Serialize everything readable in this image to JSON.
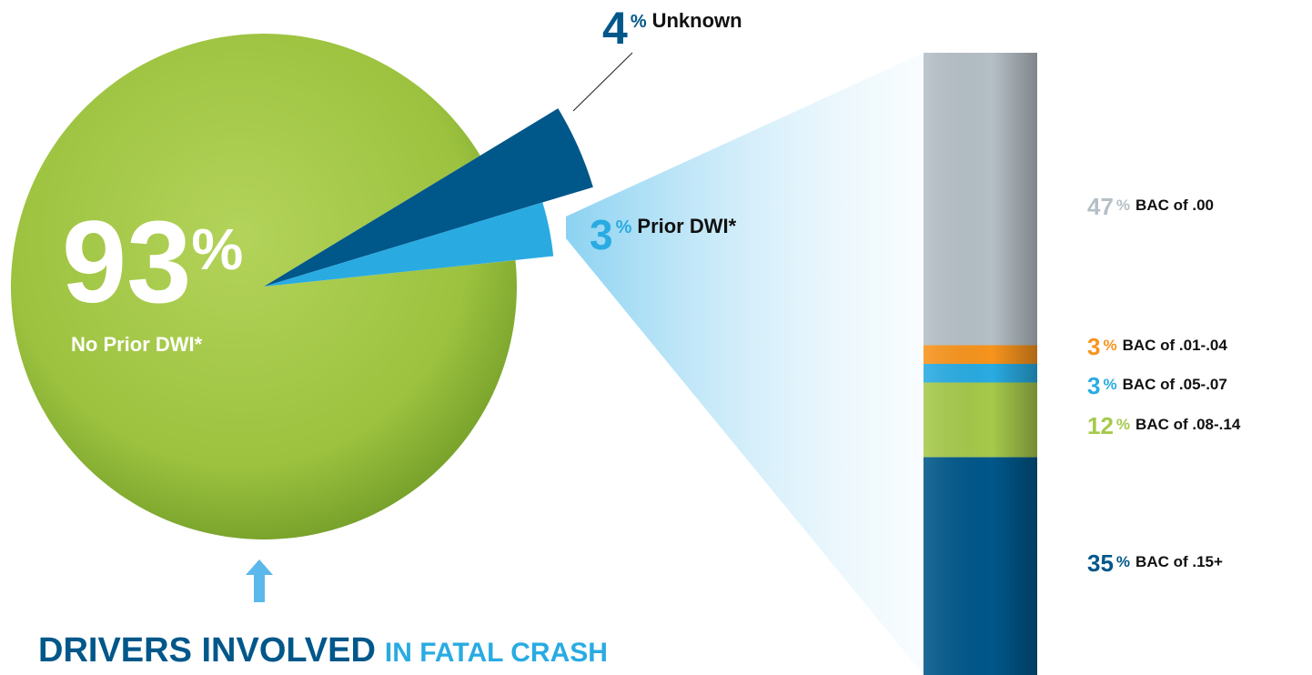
{
  "chart_data": [
    {
      "type": "pie",
      "title": [
        "DRIVERS INVOLVED",
        "IN FATAL CRASH"
      ],
      "categories": [
        "No Prior DWI*",
        "Unknown",
        "Prior DWI*"
      ],
      "values": [
        93,
        4,
        3
      ],
      "unit": "%",
      "colors": [
        "#9cc23f",
        "#00578a",
        "#29abe2"
      ]
    },
    {
      "type": "stacked-bar",
      "categories": [
        "BAC of .00",
        "BAC of .01-.04",
        "BAC of .05-.07",
        "BAC of .08-.14",
        "BAC of .15+"
      ],
      "values": [
        47,
        3,
        3,
        12,
        35
      ],
      "unit": "%",
      "colors": [
        "#b5bfc6",
        "#f7941d",
        "#29abe2",
        "#a6c94b",
        "#00578a"
      ]
    }
  ]
}
